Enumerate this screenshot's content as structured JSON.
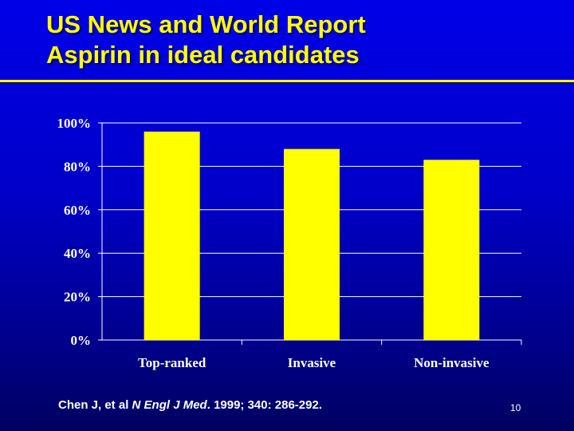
{
  "slide": {
    "title_line1": "US News and World Report",
    "title_line2": "Aspirin in ideal candidates",
    "citation_authors": "Chen J, et al",
    "citation_journal": "N Engl J Med",
    "citation_details": "1999; 340: 286-292.",
    "page_number": "10"
  },
  "colors": {
    "title": "#ffff00",
    "bar": "#ffff00",
    "grid": "#ffffff",
    "text": "#ffffff",
    "background_top": "#0000e8",
    "background_bottom": "#000060"
  },
  "chart_data": {
    "type": "bar",
    "categories": [
      "Top-ranked",
      "Invasive",
      "Non-invasive"
    ],
    "values": [
      96,
      88,
      83
    ],
    "ylim": [
      0,
      100
    ],
    "yticks": [
      0,
      20,
      40,
      60,
      80,
      100
    ],
    "ytick_labels": [
      "0%",
      "20%",
      "40%",
      "60%",
      "80%",
      "100%"
    ],
    "grid": true,
    "legend": "none"
  }
}
